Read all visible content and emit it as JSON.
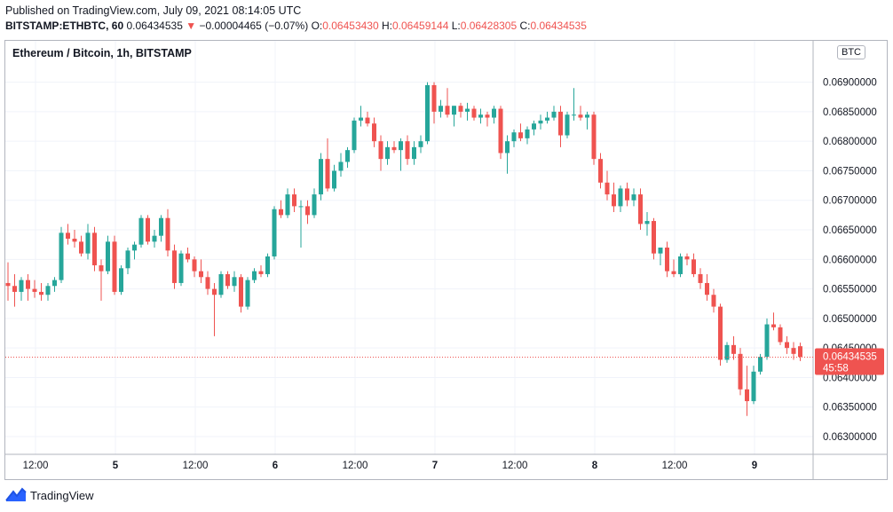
{
  "header": {
    "published": "Published on TradingView.com, July 09, 2021 08:14:05 UTC",
    "symbol": "BITSTAMP:ETHBTC, 60",
    "last_price": "0.06434535",
    "change_arrow": "▼",
    "change": "−0.00004465 (−0.07%)",
    "o_label": "O:",
    "o_value": "0.06453430",
    "h_label": "H:",
    "h_value": "0.06459144",
    "l_label": "L:",
    "l_value": "0.06428305",
    "c_label": "C:",
    "c_value": "0.06434535"
  },
  "chart_title": "Ethereum / Bitcoin, 1h, BITSTAMP",
  "currency_badge": "BTC",
  "footer": {
    "brand": "TradingView"
  },
  "colors": {
    "up": "#26a69a",
    "down": "#ef5350",
    "grid": "#f0f3fa",
    "axis_text": "#131722"
  },
  "chart_data": {
    "type": "candlestick",
    "title": "Ethereum / Bitcoin, 1h, BITSTAMP",
    "y_axis_side": "right",
    "y_ticks": [
      "0.06300000",
      "0.06350000",
      "0.06400000",
      "0.06450000",
      "0.06500000",
      "0.06550000",
      "0.06600000",
      "0.06650000",
      "0.06700000",
      "0.06750000",
      "0.06800000",
      "0.06850000",
      "0.06900000"
    ],
    "x_ticks": [
      "12:00",
      "5",
      "12:00",
      "6",
      "12:00",
      "7",
      "12:00",
      "8",
      "12:00",
      "9"
    ],
    "ylim": [
      0.0627,
      0.0697
    ],
    "grid": true,
    "current_price_label": "0.06434535",
    "countdown_label": "45:58",
    "current_price": 0.06434535,
    "candles": [
      [
        0.0656,
        0.06595,
        0.0653,
        0.06555
      ],
      [
        0.06555,
        0.06575,
        0.0652,
        0.06545
      ],
      [
        0.06545,
        0.0657,
        0.0653,
        0.06565
      ],
      [
        0.06565,
        0.06575,
        0.0653,
        0.0655
      ],
      [
        0.0655,
        0.06565,
        0.06535,
        0.06545
      ],
      [
        0.06545,
        0.0656,
        0.0653,
        0.0654
      ],
      [
        0.0654,
        0.0656,
        0.0653,
        0.06555
      ],
      [
        0.06555,
        0.0657,
        0.06545,
        0.06565
      ],
      [
        0.06565,
        0.06655,
        0.0656,
        0.06645
      ],
      [
        0.06645,
        0.0666,
        0.06625,
        0.06635
      ],
      [
        0.06635,
        0.0665,
        0.0662,
        0.0663
      ],
      [
        0.0663,
        0.0664,
        0.06605,
        0.0661
      ],
      [
        0.0661,
        0.0666,
        0.066,
        0.06645
      ],
      [
        0.06645,
        0.06655,
        0.0658,
        0.0659
      ],
      [
        0.0659,
        0.066,
        0.0653,
        0.0658
      ],
      [
        0.0658,
        0.0664,
        0.06575,
        0.0663
      ],
      [
        0.0663,
        0.0664,
        0.0654,
        0.06545
      ],
      [
        0.06545,
        0.0659,
        0.0654,
        0.06585
      ],
      [
        0.06585,
        0.0662,
        0.06575,
        0.06615
      ],
      [
        0.06615,
        0.0663,
        0.066,
        0.06625
      ],
      [
        0.06625,
        0.06675,
        0.0662,
        0.0667
      ],
      [
        0.0667,
        0.06675,
        0.06625,
        0.0663
      ],
      [
        0.0663,
        0.0665,
        0.0662,
        0.0664
      ],
      [
        0.0664,
        0.06675,
        0.0663,
        0.0667
      ],
      [
        0.0667,
        0.06685,
        0.06605,
        0.06615
      ],
      [
        0.06615,
        0.06625,
        0.0655,
        0.0656
      ],
      [
        0.0656,
        0.06615,
        0.06555,
        0.0661
      ],
      [
        0.0661,
        0.0662,
        0.06595,
        0.066
      ],
      [
        0.066,
        0.06605,
        0.0657,
        0.0658
      ],
      [
        0.0658,
        0.066,
        0.0656,
        0.0657
      ],
      [
        0.0657,
        0.0658,
        0.0654,
        0.0655
      ],
      [
        0.0655,
        0.0656,
        0.0647,
        0.0654
      ],
      [
        0.0654,
        0.0658,
        0.06535,
        0.06575
      ],
      [
        0.06575,
        0.0658,
        0.0655,
        0.06555
      ],
      [
        0.06555,
        0.0658,
        0.06545,
        0.0657
      ],
      [
        0.0657,
        0.06575,
        0.0651,
        0.0652
      ],
      [
        0.0652,
        0.0657,
        0.06515,
        0.06565
      ],
      [
        0.06565,
        0.06585,
        0.0656,
        0.0658
      ],
      [
        0.0658,
        0.0659,
        0.0657,
        0.06575
      ],
      [
        0.06575,
        0.0661,
        0.0657,
        0.06605
      ],
      [
        0.06605,
        0.0669,
        0.066,
        0.06685
      ],
      [
        0.06685,
        0.067,
        0.0667,
        0.06675
      ],
      [
        0.06675,
        0.0672,
        0.0667,
        0.0671
      ],
      [
        0.0671,
        0.0672,
        0.0668,
        0.0669
      ],
      [
        0.0669,
        0.067,
        0.0662,
        0.0669
      ],
      [
        0.0669,
        0.067,
        0.0666,
        0.06675
      ],
      [
        0.06675,
        0.0672,
        0.0667,
        0.0671
      ],
      [
        0.0671,
        0.0678,
        0.067,
        0.0677
      ],
      [
        0.0677,
        0.06805,
        0.06715,
        0.0672
      ],
      [
        0.0672,
        0.0676,
        0.06715,
        0.0675
      ],
      [
        0.0675,
        0.0678,
        0.0674,
        0.06765
      ],
      [
        0.06765,
        0.0679,
        0.06755,
        0.06785
      ],
      [
        0.06785,
        0.0684,
        0.0678,
        0.06835
      ],
      [
        0.06835,
        0.0686,
        0.06825,
        0.0684
      ],
      [
        0.0684,
        0.0685,
        0.06825,
        0.0683
      ],
      [
        0.0683,
        0.0684,
        0.0679,
        0.068
      ],
      [
        0.068,
        0.0681,
        0.0675,
        0.0677
      ],
      [
        0.0677,
        0.068,
        0.0676,
        0.0679
      ],
      [
        0.0679,
        0.068,
        0.0678,
        0.06785
      ],
      [
        0.06785,
        0.06805,
        0.0675,
        0.068
      ],
      [
        0.068,
        0.0681,
        0.0676,
        0.0677
      ],
      [
        0.0677,
        0.068,
        0.0676,
        0.0679
      ],
      [
        0.0679,
        0.0681,
        0.0678,
        0.068
      ],
      [
        0.068,
        0.069,
        0.06795,
        0.06895
      ],
      [
        0.06895,
        0.069,
        0.0683,
        0.0685
      ],
      [
        0.0685,
        0.0687,
        0.0684,
        0.0686
      ],
      [
        0.0686,
        0.0689,
        0.0684,
        0.06845
      ],
      [
        0.06845,
        0.0686,
        0.06825,
        0.0686
      ],
      [
        0.0686,
        0.06865,
        0.0684,
        0.0685
      ],
      [
        0.0685,
        0.06865,
        0.06835,
        0.06855
      ],
      [
        0.06855,
        0.0686,
        0.06835,
        0.0684
      ],
      [
        0.0684,
        0.06855,
        0.0683,
        0.06845
      ],
      [
        0.06845,
        0.0685,
        0.06825,
        0.0684
      ],
      [
        0.0684,
        0.0686,
        0.0683,
        0.06855
      ],
      [
        0.06855,
        0.0686,
        0.0677,
        0.0678
      ],
      [
        0.0678,
        0.0681,
        0.06745,
        0.068
      ],
      [
        0.068,
        0.0682,
        0.0679,
        0.06815
      ],
      [
        0.06815,
        0.0683,
        0.068,
        0.06805
      ],
      [
        0.06805,
        0.06825,
        0.06795,
        0.0682
      ],
      [
        0.0682,
        0.06835,
        0.0681,
        0.0683
      ],
      [
        0.0683,
        0.06845,
        0.0682,
        0.06835
      ],
      [
        0.06835,
        0.0685,
        0.0683,
        0.0684
      ],
      [
        0.0684,
        0.0686,
        0.06835,
        0.0685
      ],
      [
        0.0685,
        0.0686,
        0.0679,
        0.0681
      ],
      [
        0.0681,
        0.0685,
        0.06805,
        0.06845
      ],
      [
        0.06845,
        0.0689,
        0.06835,
        0.06845
      ],
      [
        0.06845,
        0.0686,
        0.06835,
        0.0684
      ],
      [
        0.0684,
        0.0685,
        0.0682,
        0.06845
      ],
      [
        0.06845,
        0.0685,
        0.0676,
        0.0677
      ],
      [
        0.0677,
        0.0678,
        0.0672,
        0.0673
      ],
      [
        0.0673,
        0.0675,
        0.067,
        0.0671
      ],
      [
        0.0671,
        0.0673,
        0.0668,
        0.0669
      ],
      [
        0.0669,
        0.06725,
        0.0668,
        0.0672
      ],
      [
        0.0672,
        0.0673,
        0.0669,
        0.067
      ],
      [
        0.067,
        0.0672,
        0.0669,
        0.0671
      ],
      [
        0.0671,
        0.0672,
        0.0665,
        0.0666
      ],
      [
        0.0666,
        0.0668,
        0.0664,
        0.06665
      ],
      [
        0.06665,
        0.0667,
        0.066,
        0.0661
      ],
      [
        0.0661,
        0.0662,
        0.0659,
        0.0662
      ],
      [
        0.0662,
        0.0663,
        0.0657,
        0.0658
      ],
      [
        0.0658,
        0.066,
        0.0657,
        0.06575
      ],
      [
        0.06575,
        0.0661,
        0.0657,
        0.06605
      ],
      [
        0.06605,
        0.0661,
        0.0659,
        0.066
      ],
      [
        0.066,
        0.0661,
        0.0657,
        0.06575
      ],
      [
        0.06575,
        0.06585,
        0.0655,
        0.0656
      ],
      [
        0.0656,
        0.06575,
        0.0653,
        0.0654
      ],
      [
        0.0654,
        0.0655,
        0.0651,
        0.0652
      ],
      [
        0.0652,
        0.06525,
        0.0642,
        0.0643
      ],
      [
        0.0643,
        0.0646,
        0.06425,
        0.06455
      ],
      [
        0.06455,
        0.0647,
        0.0643,
        0.0644
      ],
      [
        0.0644,
        0.0645,
        0.0637,
        0.0638
      ],
      [
        0.0638,
        0.0642,
        0.06335,
        0.0636
      ],
      [
        0.0636,
        0.0642,
        0.06355,
        0.0641
      ],
      [
        0.0641,
        0.0644,
        0.06405,
        0.06435
      ],
      [
        0.06435,
        0.065,
        0.0643,
        0.0649
      ],
      [
        0.0649,
        0.0651,
        0.0648,
        0.06485
      ],
      [
        0.06485,
        0.0649,
        0.06455,
        0.0646
      ],
      [
        0.0646,
        0.0647,
        0.0644,
        0.0645
      ],
      [
        0.0645,
        0.0646,
        0.0643,
        0.0644
      ],
      [
        0.06453,
        0.06459,
        0.06428,
        0.06435
      ]
    ]
  }
}
